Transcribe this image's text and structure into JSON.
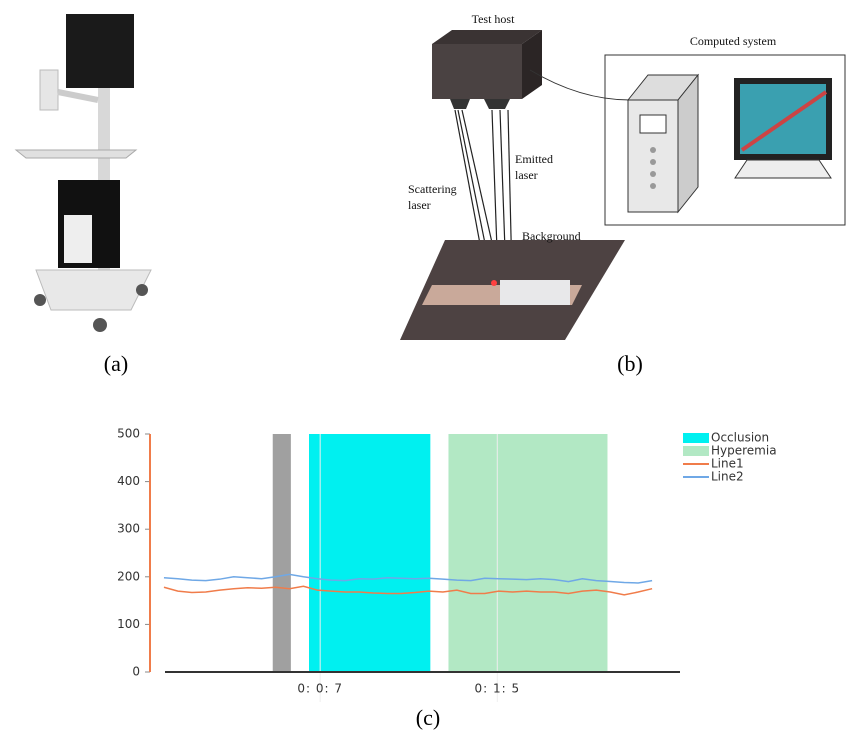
{
  "panels": {
    "a": {
      "label": "(a)"
    },
    "b": {
      "label": "(b)",
      "test_host": "Test host",
      "computed_system": "Computed system",
      "emitted": [
        "Emitted",
        "laser"
      ],
      "scattering": [
        "Scattering",
        "laser"
      ],
      "background": "Background"
    },
    "c": {
      "label": "(c)"
    }
  },
  "chart_data": {
    "type": "line",
    "x": [
      1,
      2,
      3,
      4,
      5,
      6,
      7,
      8,
      9,
      10,
      11,
      12,
      13,
      14,
      15,
      16,
      17,
      18,
      19,
      20,
      21,
      22,
      23,
      24,
      25,
      26,
      27,
      28,
      29,
      30,
      31,
      32,
      33,
      34,
      35,
      36
    ],
    "series": [
      {
        "name": "Line1",
        "color": "#f07c4a",
        "values": [
          178,
          170,
          167,
          168,
          172,
          175,
          177,
          176,
          178,
          175,
          180,
          172,
          170,
          168,
          168,
          166,
          165,
          165,
          167,
          170,
          168,
          172,
          165,
          165,
          170,
          168,
          170,
          168,
          168,
          165,
          170,
          172,
          168,
          162,
          168,
          175
        ]
      },
      {
        "name": "Line2",
        "color": "#6fa8e6",
        "values": [
          198,
          196,
          193,
          192,
          195,
          200,
          198,
          196,
          200,
          205,
          200,
          196,
          193,
          192,
          196,
          195,
          198,
          197,
          196,
          197,
          195,
          193,
          192,
          197,
          196,
          195,
          194,
          196,
          194,
          190,
          196,
          192,
          190,
          188,
          187,
          192
        ]
      }
    ],
    "regions": [
      {
        "color": "#a0a0a0",
        "start": 8.8,
        "end": 10.1
      },
      {
        "name": "Occlusion",
        "color": "#00f0f0",
        "start": 11.4,
        "end": 20.1
      },
      {
        "name": "Hyperemia",
        "color": "#b2e8c4",
        "start": 21.4,
        "end": 32.8
      }
    ],
    "xlim": [
      0,
      38
    ],
    "xticks": [
      {
        "value": 12.2,
        "label": "0: 0: 7"
      },
      {
        "value": 24.9,
        "label": "0: 1: 5"
      }
    ],
    "ylim": [
      0,
      500
    ],
    "yticks": [
      0,
      100,
      200,
      300,
      400,
      500
    ],
    "legend": "right",
    "grid": true
  }
}
